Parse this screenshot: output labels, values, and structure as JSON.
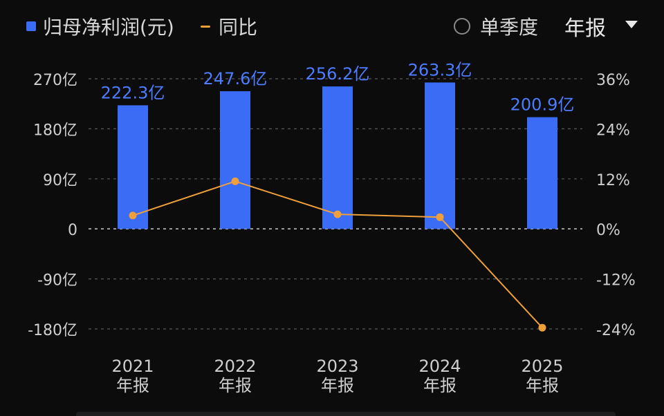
{
  "header": {
    "legend_bar": "归母净利润(元)",
    "legend_line": "同比",
    "toggle_label": "单季度",
    "select_value": "年报"
  },
  "colors": {
    "bar": "#3b6cf6",
    "line": "#f0a03a",
    "label": "#4d7cff",
    "axis_text": "#cfcfcf",
    "grid": "#5a5a5a"
  },
  "chart_data": {
    "type": "bar",
    "categories": [
      "2021\n年报",
      "2022\n年报",
      "2023\n年报",
      "2024\n年报",
      "2025\n年报"
    ],
    "x_year": [
      "2021",
      "2022",
      "2023",
      "2024",
      "2025"
    ],
    "x_period": [
      "年报",
      "年报",
      "年报",
      "年报",
      "年报"
    ],
    "series": [
      {
        "name": "归母净利润(元)",
        "type": "bar",
        "axis": "left",
        "values": [
          222.3,
          247.6,
          256.2,
          263.3,
          200.9
        ],
        "labels": [
          "222.3亿",
          "247.6亿",
          "256.2亿",
          "263.3亿",
          "200.9亿"
        ]
      },
      {
        "name": "同比",
        "type": "line",
        "axis": "right",
        "values": [
          3.2,
          11.4,
          3.5,
          2.8,
          -23.7
        ]
      }
    ],
    "left_axis": {
      "ticks": [
        270,
        180,
        90,
        0,
        -90,
        -180
      ],
      "tick_labels": [
        "270亿",
        "180亿",
        "90亿",
        "0",
        "-90亿",
        "-180亿"
      ],
      "range": [
        -180,
        270
      ]
    },
    "right_axis": {
      "ticks": [
        36,
        24,
        12,
        0,
        -12,
        -24
      ],
      "tick_labels": [
        "36%",
        "24%",
        "12%",
        "0%",
        "-12%",
        "-24%"
      ],
      "range": [
        -24,
        36
      ]
    },
    "grid": true
  }
}
